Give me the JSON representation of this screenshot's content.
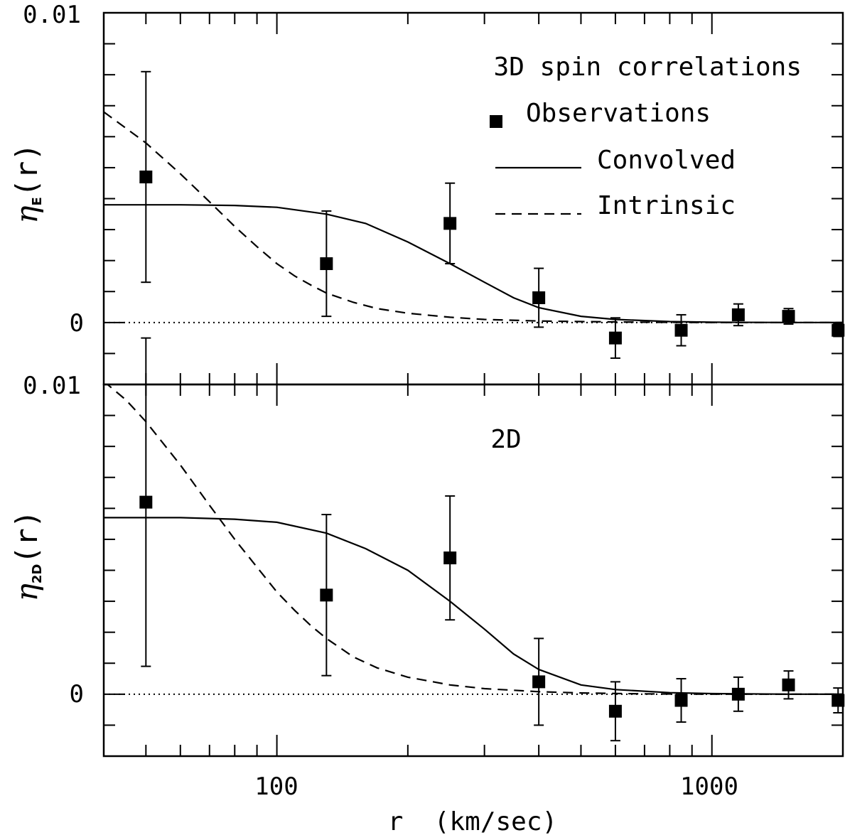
{
  "chart_data": [
    {
      "type": "scatter",
      "panel": "top",
      "xscale": "log",
      "xlim": [
        40,
        2000
      ],
      "ylim": [
        -0.002,
        0.01
      ],
      "ylabel_symbol": "η",
      "ylabel_subscript": "E",
      "ylabel_suffix": "(r)",
      "y_tick_labels": [
        "0.01",
        "0"
      ],
      "annotation": "3D spin correlations",
      "legend": {
        "observations": "Observations",
        "convolved": "Convolved",
        "intrinsic": "Intrinsic"
      },
      "series": [
        {
          "name": "Observations",
          "style": "square-with-errorbars",
          "points": [
            {
              "x": 50,
              "y": 0.0047,
              "err_low": 0.0034,
              "err_high": 0.0034
            },
            {
              "x": 130,
              "y": 0.0019,
              "err_low": 0.0017,
              "err_high": 0.0017
            },
            {
              "x": 250,
              "y": 0.0032,
              "err_low": 0.0013,
              "err_high": 0.0013
            },
            {
              "x": 400,
              "y": 0.0008,
              "err_low": 0.00095,
              "err_high": 0.00095
            },
            {
              "x": 600,
              "y": -0.0005,
              "err_low": 0.00065,
              "err_high": 0.00065
            },
            {
              "x": 850,
              "y": -0.00025,
              "err_low": 0.0005,
              "err_high": 0.0005
            },
            {
              "x": 1150,
              "y": 0.00025,
              "err_low": 0.00035,
              "err_high": 0.00035
            },
            {
              "x": 1500,
              "y": 0.0002,
              "err_low": 0.00025,
              "err_high": 0.00025
            },
            {
              "x": 1950,
              "y": -0.00025,
              "err_low": 0.0002,
              "err_high": 0.0002
            }
          ]
        },
        {
          "name": "Convolved",
          "style": "solid",
          "x": [
            40,
            60,
            80,
            100,
            130,
            160,
            200,
            250,
            300,
            350,
            400,
            500,
            600,
            800,
            1000,
            1500,
            2000
          ],
          "y": [
            0.0038,
            0.0038,
            0.00378,
            0.00372,
            0.0035,
            0.0032,
            0.0026,
            0.0019,
            0.0013,
            0.0008,
            0.00048,
            0.0002,
            0.0001,
            3e-05,
            1e-05,
            0.0,
            0.0
          ]
        },
        {
          "name": "Intrinsic",
          "style": "dashed",
          "x": [
            40,
            50,
            60,
            70,
            80,
            90,
            100,
            110,
            120,
            130,
            150,
            170,
            200,
            250,
            300,
            400,
            500,
            700,
            1000,
            1500,
            2000
          ],
          "y": [
            0.0068,
            0.0058,
            0.0048,
            0.0039,
            0.0031,
            0.00245,
            0.0019,
            0.0015,
            0.0012,
            0.00095,
            0.00065,
            0.00045,
            0.0003,
            0.00017,
            0.0001,
            5e-05,
            3e-05,
            1e-05,
            0.0,
            0.0,
            0.0
          ]
        }
      ]
    },
    {
      "type": "scatter",
      "panel": "bottom",
      "xscale": "log",
      "xlim": [
        40,
        2000
      ],
      "ylim": [
        -0.002,
        0.01
      ],
      "ylabel_symbol": "η",
      "ylabel_subscript": "2D",
      "ylabel_suffix": "(r)",
      "y_tick_labels": [
        "0.01",
        "0"
      ],
      "annotation": "2D",
      "xlabel": "r  (km/sec)",
      "x_tick_labels": [
        "100",
        "1000"
      ],
      "series": [
        {
          "name": "Observations",
          "style": "square-with-errorbars",
          "points": [
            {
              "x": 50,
              "y": 0.0062,
              "err_low": 0.0053,
              "err_high": 0.0053
            },
            {
              "x": 130,
              "y": 0.0032,
              "err_low": 0.0026,
              "err_high": 0.0026
            },
            {
              "x": 250,
              "y": 0.0044,
              "err_low": 0.002,
              "err_high": 0.002
            },
            {
              "x": 400,
              "y": 0.0004,
              "err_low": 0.0014,
              "err_high": 0.0014
            },
            {
              "x": 600,
              "y": -0.00055,
              "err_low": 0.00095,
              "err_high": 0.00095
            },
            {
              "x": 850,
              "y": -0.0002,
              "err_low": 0.0007,
              "err_high": 0.0007
            },
            {
              "x": 1150,
              "y": 0.0,
              "err_low": 0.00055,
              "err_high": 0.00055
            },
            {
              "x": 1500,
              "y": 0.0003,
              "err_low": 0.00045,
              "err_high": 0.00045
            },
            {
              "x": 1950,
              "y": -0.0002,
              "err_low": 0.0004,
              "err_high": 0.0004
            }
          ]
        },
        {
          "name": "Convolved",
          "style": "solid",
          "x": [
            40,
            60,
            80,
            100,
            130,
            160,
            200,
            250,
            300,
            350,
            400,
            500,
            600,
            800,
            1000,
            1500,
            2000
          ],
          "y": [
            0.0057,
            0.0057,
            0.00565,
            0.00555,
            0.0052,
            0.0047,
            0.004,
            0.003,
            0.0021,
            0.0013,
            0.0008,
            0.0003,
            0.00015,
            5e-05,
            2e-05,
            0.0,
            0.0
          ]
        },
        {
          "name": "Intrinsic",
          "style": "dashed",
          "x": [
            40,
            45,
            50,
            60,
            70,
            80,
            90,
            100,
            110,
            120,
            130,
            150,
            170,
            200,
            250,
            300,
            400,
            500,
            700,
            1000,
            1500,
            2000
          ],
          "y": [
            0.0101,
            0.0095,
            0.0088,
            0.0074,
            0.0061,
            0.005,
            0.0041,
            0.0033,
            0.0027,
            0.0022,
            0.0018,
            0.0012,
            0.00085,
            0.00055,
            0.0003,
            0.00018,
            8e-05,
            4e-05,
            1e-05,
            0.0,
            0.0,
            0.0
          ]
        }
      ]
    }
  ]
}
